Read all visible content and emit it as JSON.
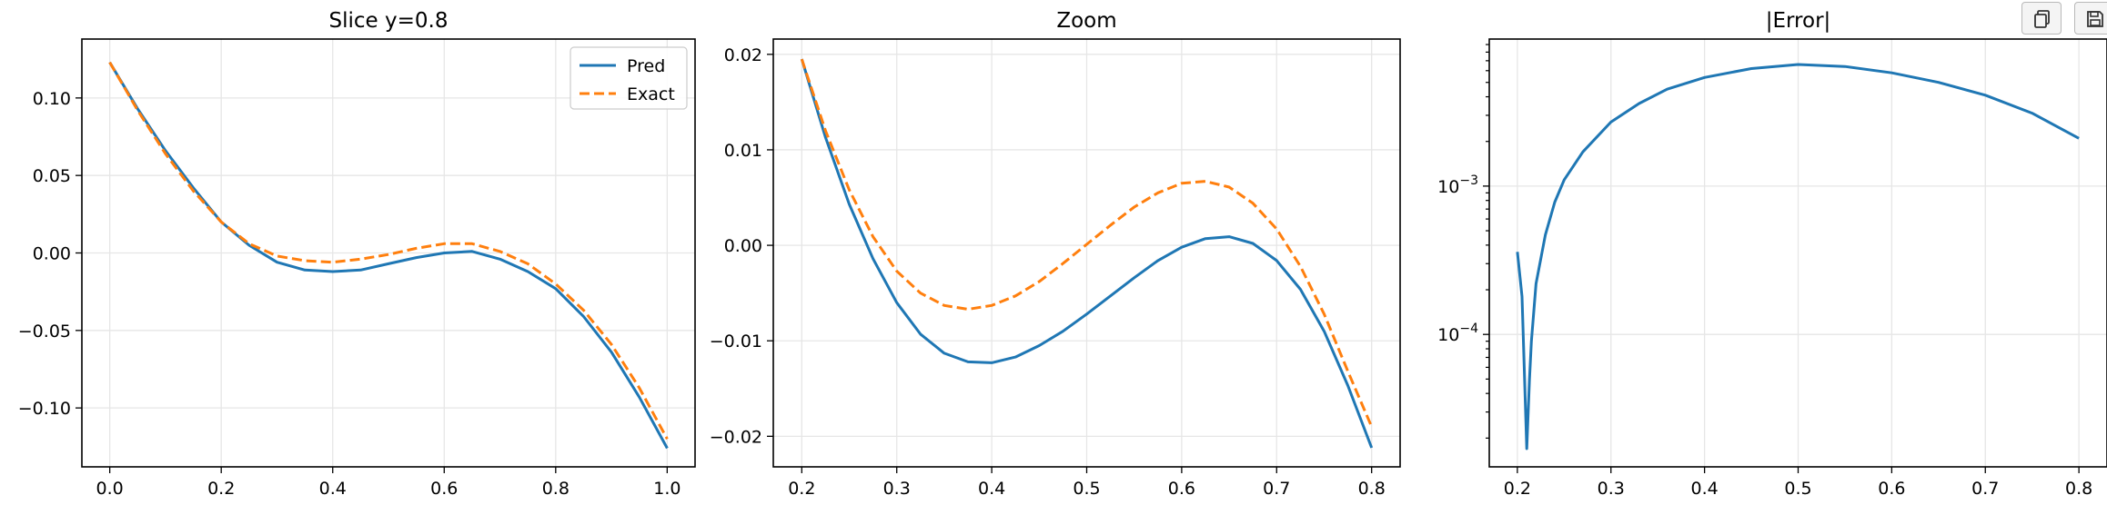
{
  "toolbar": {
    "buttons": [
      {
        "icon": "copy-icon"
      },
      {
        "icon": "save-icon"
      }
    ]
  },
  "colors": {
    "pred": "#1f77b4",
    "exact": "#ff7f0e",
    "grid": "#e6e6e6",
    "axis": "#000000"
  },
  "chart_data": [
    {
      "type": "line",
      "title": "Slice y=0.8",
      "xlabel": "",
      "ylabel": "",
      "xlim": [
        -0.05,
        1.05
      ],
      "ylim": [
        -0.138,
        0.138
      ],
      "xticks": [
        0.0,
        0.2,
        0.4,
        0.6,
        0.8,
        1.0
      ],
      "xtick_labels": [
        "0.0",
        "0.2",
        "0.4",
        "0.6",
        "0.8",
        "1.0"
      ],
      "yticks": [
        -0.1,
        -0.05,
        0.0,
        0.05,
        0.1
      ],
      "ytick_labels": [
        "−0.10",
        "−0.05",
        "0.00",
        "0.05",
        "0.10"
      ],
      "grid": true,
      "legend": "top-right",
      "series": [
        {
          "name": "Pred",
          "style": "solid",
          "x": [
            0.0,
            0.05,
            0.1,
            0.15,
            0.2,
            0.25,
            0.3,
            0.35,
            0.4,
            0.45,
            0.5,
            0.55,
            0.6,
            0.65,
            0.7,
            0.75,
            0.8,
            0.85,
            0.9,
            0.95,
            1.0
          ],
          "y": [
            0.123,
            0.093,
            0.066,
            0.042,
            0.02,
            0.005,
            -0.006,
            -0.011,
            -0.012,
            -0.011,
            -0.007,
            -0.003,
            0.0,
            0.001,
            -0.004,
            -0.012,
            -0.023,
            -0.041,
            -0.064,
            -0.093,
            -0.126
          ]
        },
        {
          "name": "Exact",
          "style": "dashed",
          "x": [
            0.0,
            0.05,
            0.1,
            0.15,
            0.2,
            0.25,
            0.3,
            0.35,
            0.4,
            0.45,
            0.5,
            0.55,
            0.6,
            0.65,
            0.7,
            0.75,
            0.8,
            0.85,
            0.9,
            0.95,
            1.0
          ],
          "y": [
            0.123,
            0.092,
            0.064,
            0.04,
            0.02,
            0.006,
            -0.002,
            -0.005,
            -0.006,
            -0.004,
            -0.001,
            0.003,
            0.006,
            0.006,
            0.001,
            -0.007,
            -0.02,
            -0.037,
            -0.059,
            -0.087,
            -0.12
          ]
        }
      ]
    },
    {
      "type": "line",
      "title": "Zoom",
      "xlabel": "",
      "ylabel": "",
      "xlim": [
        0.17,
        0.83
      ],
      "ylim": [
        -0.0232,
        0.0216
      ],
      "xticks": [
        0.2,
        0.3,
        0.4,
        0.5,
        0.6,
        0.7,
        0.8
      ],
      "xtick_labels": [
        "0.2",
        "0.3",
        "0.4",
        "0.5",
        "0.6",
        "0.7",
        "0.8"
      ],
      "yticks": [
        -0.02,
        -0.01,
        0.0,
        0.01,
        0.02
      ],
      "ytick_labels": [
        "−0.02",
        "−0.01",
        "0.00",
        "0.01",
        "0.02"
      ],
      "grid": true,
      "series": [
        {
          "name": "Pred",
          "style": "solid",
          "x": [
            0.2,
            0.225,
            0.25,
            0.275,
            0.3,
            0.325,
            0.35,
            0.375,
            0.4,
            0.425,
            0.45,
            0.475,
            0.5,
            0.525,
            0.55,
            0.575,
            0.6,
            0.625,
            0.65,
            0.675,
            0.7,
            0.725,
            0.75,
            0.775,
            0.8
          ],
          "y": [
            0.0195,
            0.0113,
            0.0043,
            -0.0014,
            -0.006,
            -0.0093,
            -0.0113,
            -0.0122,
            -0.0123,
            -0.0117,
            -0.0105,
            -0.009,
            -0.0072,
            -0.0053,
            -0.0034,
            -0.0016,
            -0.0002,
            0.0007,
            0.0009,
            0.0002,
            -0.0016,
            -0.0046,
            -0.009,
            -0.0147,
            -0.0212
          ]
        },
        {
          "name": "Exact",
          "style": "dashed",
          "x": [
            0.2,
            0.225,
            0.25,
            0.275,
            0.3,
            0.325,
            0.35,
            0.375,
            0.4,
            0.425,
            0.45,
            0.475,
            0.5,
            0.525,
            0.55,
            0.575,
            0.6,
            0.625,
            0.65,
            0.675,
            0.7,
            0.725,
            0.75,
            0.775,
            0.8
          ],
          "y": [
            0.0195,
            0.012,
            0.0058,
            0.0009,
            -0.0027,
            -0.005,
            -0.0063,
            -0.0067,
            -0.0063,
            -0.0053,
            -0.0038,
            -0.0019,
            0.0001,
            0.0021,
            0.004,
            0.0055,
            0.0065,
            0.0067,
            0.0061,
            0.0044,
            0.0017,
            -0.0022,
            -0.0072,
            -0.0132,
            -0.019
          ]
        }
      ]
    },
    {
      "type": "line",
      "title": "|Error|",
      "xlabel": "",
      "ylabel": "",
      "yscale": "log",
      "xlim": [
        0.17,
        0.83
      ],
      "ylim": [
        1.28e-05,
        0.0098
      ],
      "xticks": [
        0.2,
        0.3,
        0.4,
        0.5,
        0.6,
        0.7,
        0.8
      ],
      "xtick_labels": [
        "0.2",
        "0.3",
        "0.4",
        "0.5",
        "0.6",
        "0.7",
        "0.8"
      ],
      "yticks": [
        0.0001,
        0.001
      ],
      "ytick_labels": [
        {
          "base": "10",
          "exp": "−4"
        },
        {
          "base": "10",
          "exp": "−3"
        }
      ],
      "grid": true,
      "series": [
        {
          "name": "",
          "style": "solid",
          "x": [
            0.2,
            0.205,
            0.21,
            0.213,
            0.215,
            0.22,
            0.23,
            0.24,
            0.25,
            0.27,
            0.3,
            0.33,
            0.36,
            0.4,
            0.45,
            0.5,
            0.55,
            0.6,
            0.65,
            0.7,
            0.75,
            0.8
          ],
          "y": [
            0.00036,
            0.00018,
            1.7e-05,
            5e-05,
            9e-05,
            0.00022,
            0.00047,
            0.00078,
            0.0011,
            0.0017,
            0.0027,
            0.0036,
            0.0045,
            0.0054,
            0.0062,
            0.0066,
            0.0064,
            0.0058,
            0.005,
            0.0041,
            0.0031,
            0.0021
          ]
        }
      ]
    }
  ]
}
